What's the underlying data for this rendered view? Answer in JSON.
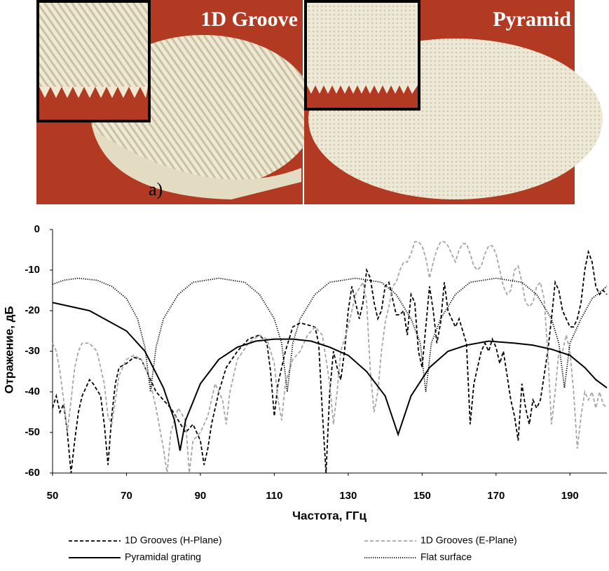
{
  "photos": {
    "left_label": "1D Groove",
    "right_label": "Pyramid",
    "panel_label": "a)"
  },
  "chart_data": {
    "type": "line",
    "x_label": "Частота, ГГц",
    "y_label": "Отражение, дБ",
    "xlim": [
      50,
      200
    ],
    "ylim": [
      -60,
      0
    ],
    "xticks": [
      50,
      70,
      90,
      110,
      130,
      150,
      170,
      190
    ],
    "yticks": [
      0,
      -10,
      -20,
      -30,
      -40,
      -50,
      -60
    ],
    "grid": false,
    "legend": "bottom",
    "series": [
      {
        "name": "1D Grooves (H-Plane)",
        "color": "#000000",
        "dash": "dashed",
        "x": [
          50,
          51,
          52,
          53,
          54,
          55,
          56,
          57,
          58,
          59,
          60,
          61,
          63,
          64,
          65,
          66,
          67,
          68,
          70,
          72,
          74,
          76,
          78,
          80,
          82,
          84,
          86,
          88,
          90,
          91,
          92,
          93,
          95,
          97,
          100,
          103,
          106,
          108,
          109,
          110,
          111,
          113,
          115,
          117,
          119,
          121,
          122,
          123,
          124,
          125,
          126,
          127,
          128,
          129,
          130,
          131,
          132,
          133,
          134,
          135,
          136,
          137,
          138,
          139,
          140,
          141,
          142,
          143,
          144,
          145,
          146,
          147,
          148,
          149,
          150,
          151,
          152,
          153,
          154,
          155,
          156,
          157,
          158,
          159,
          160,
          161,
          162,
          163,
          164,
          165,
          166,
          167,
          168,
          169,
          170,
          171,
          172,
          173,
          174,
          175,
          176,
          177,
          178,
          179,
          180,
          181,
          182,
          183,
          184,
          185,
          186,
          187,
          188,
          189,
          190,
          191,
          192,
          193,
          194,
          195,
          196,
          197,
          198,
          199,
          200
        ],
        "values": [
          -44,
          -41,
          -45,
          -43,
          -50,
          -60,
          -52,
          -45,
          -41,
          -39,
          -37,
          -38,
          -41,
          -48,
          -58,
          -46,
          -38,
          -34,
          -33,
          -31.5,
          -32,
          -36,
          -40,
          -42,
          -44,
          -47,
          -50,
          -48,
          -52,
          -58,
          -54,
          -48,
          -40,
          -34,
          -30,
          -27,
          -26,
          -28,
          -35,
          -46,
          -38,
          -30,
          -24,
          -23,
          -23.5,
          -24,
          -28,
          -45,
          -60,
          -40,
          -30,
          -34,
          -37,
          -30,
          -20,
          -14,
          -18,
          -22,
          -18,
          -10,
          -12,
          -18,
          -22,
          -20,
          -14,
          -13,
          -17,
          -21,
          -21,
          -20,
          -26,
          -16,
          -18,
          -30,
          -34,
          -24,
          -14,
          -20,
          -28,
          -23,
          -13,
          -20,
          -22,
          -24,
          -22,
          -25,
          -28,
          -48,
          -38,
          -34,
          -30,
          -28,
          -30,
          -27,
          -29,
          -33,
          -30,
          -36,
          -42,
          -46,
          -52,
          -38,
          -44,
          -48,
          -42,
          -44,
          -42,
          -36,
          -30,
          -22,
          -13,
          -15,
          -20,
          -22,
          -24,
          -24,
          -22,
          -18,
          -10,
          -5.5,
          -8,
          -14,
          -16,
          -15,
          -16
        ]
      },
      {
        "name": "1D Grooves (E-Plane)",
        "color": "#a6a6a6",
        "dash": "dashed",
        "x": [
          50,
          51,
          52,
          53,
          54,
          55,
          56,
          57,
          58,
          60,
          62,
          64,
          65,
          66,
          67,
          68,
          70,
          72,
          74,
          76,
          78,
          80,
          81,
          82,
          84,
          86,
          87,
          88,
          90,
          92,
          94,
          96,
          97,
          98,
          100,
          103,
          106,
          108,
          110,
          111,
          112,
          113,
          115,
          117,
          119,
          121,
          123,
          125,
          126,
          127,
          128,
          130,
          132,
          134,
          135,
          136,
          137,
          138,
          139,
          140,
          141,
          142,
          143,
          144,
          145,
          146,
          147,
          148,
          149,
          150,
          151,
          152,
          153,
          154,
          155,
          156,
          157,
          158,
          159,
          160,
          161,
          162,
          163,
          164,
          165,
          166,
          167,
          168,
          169,
          170,
          171,
          172,
          173,
          174,
          175,
          176,
          177,
          178,
          179,
          180,
          181,
          182,
          183,
          184,
          185,
          186,
          187,
          188,
          189,
          190,
          191,
          192,
          193,
          194,
          195,
          196,
          197,
          198,
          199,
          200
        ],
        "values": [
          -28,
          -30,
          -35,
          -42,
          -50,
          -42,
          -34,
          -30,
          -28,
          -28,
          -30,
          -38,
          -46,
          -48,
          -42,
          -36,
          -32,
          -31,
          -32,
          -36,
          -44,
          -54,
          -60,
          -50,
          -44,
          -47,
          -60,
          -52,
          -50,
          -46,
          -38,
          -42,
          -48,
          -40,
          -32,
          -28,
          -26,
          -27,
          -33,
          -42,
          -47,
          -38,
          -32,
          -30,
          -26,
          -24,
          -26,
          -38,
          -48,
          -40,
          -30,
          -24,
          -16,
          -13,
          -18,
          -35,
          -45,
          -40,
          -30,
          -23,
          -19,
          -14,
          -13,
          -10,
          -8,
          -8,
          -6,
          -3,
          -3,
          -4,
          -7,
          -12,
          -8,
          -5,
          -3,
          -3,
          -4,
          -6,
          -8,
          -5,
          -3.5,
          -3.5,
          -6,
          -9,
          -10,
          -9,
          -6,
          -4,
          -4,
          -6,
          -10,
          -14,
          -16,
          -15,
          -10,
          -9,
          -13,
          -18,
          -19,
          -18,
          -14,
          -13,
          -17,
          -30,
          -48,
          -40,
          -30,
          -30,
          -26,
          -30,
          -40,
          -54,
          -46,
          -40,
          -42,
          -40,
          -44,
          -40,
          -43,
          -44
        ]
      },
      {
        "name": "Pyramidal grating",
        "color": "#000000",
        "dash": "solid",
        "x": [
          50,
          60,
          70,
          75,
          80,
          83,
          84.5,
          86,
          90,
          95,
          100,
          105,
          110,
          115,
          120,
          125,
          130,
          135,
          140,
          143.5,
          147,
          152,
          157,
          162,
          168,
          175,
          180,
          185,
          190,
          194,
          197,
          200
        ],
        "values": [
          -18,
          -20,
          -25,
          -30,
          -39,
          -47,
          -54.5,
          -47,
          -38,
          -32,
          -29,
          -27.5,
          -27,
          -27,
          -27.5,
          -29,
          -31,
          -35,
          -41,
          -50.5,
          -41,
          -34,
          -30,
          -28.5,
          -27.5,
          -28,
          -28.5,
          -29.5,
          -31,
          -34,
          -37,
          -39
        ]
      },
      {
        "name": "Flat surface",
        "color": "#000000",
        "dash": "dotted",
        "x": [
          50,
          53,
          57,
          62,
          66,
          70,
          73,
          75,
          76.5,
          78,
          80,
          84,
          88,
          95,
          102,
          106,
          110,
          112,
          113.5,
          115,
          117,
          121,
          125,
          132,
          139,
          143,
          147,
          149.5,
          151,
          152.5,
          155,
          159,
          163,
          170,
          177,
          181,
          185,
          187,
          188.5,
          190,
          193,
          196,
          200
        ],
        "values": [
          -13.5,
          -12.5,
          -12,
          -12.5,
          -14,
          -17,
          -22,
          -29,
          -40,
          -29,
          -22,
          -16,
          -13,
          -12,
          -13,
          -16,
          -22,
          -28,
          -40,
          -28,
          -22,
          -16,
          -13,
          -12,
          -13,
          -16,
          -22,
          -28,
          -40,
          -28,
          -22,
          -16,
          -13,
          -12,
          -13,
          -16,
          -22,
          -28,
          -39,
          -28,
          -22,
          -17,
          -14
        ]
      }
    ]
  }
}
